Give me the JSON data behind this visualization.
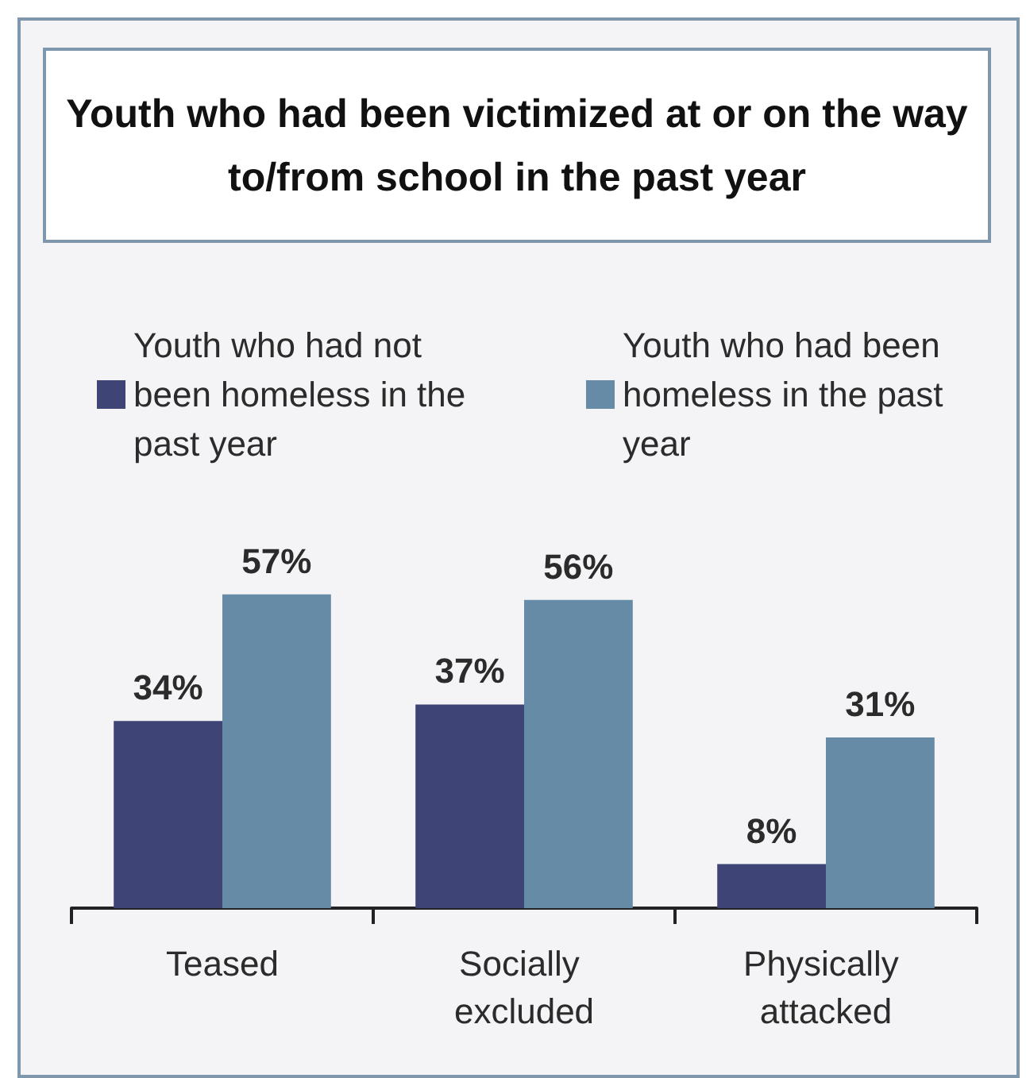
{
  "chart_data": {
    "type": "bar",
    "title": "Youth who had been victimized at or on the way to/from school in the past year",
    "categories": [
      "Teased",
      "Socially excluded",
      "Physically attacked"
    ],
    "series": [
      {
        "name": "Youth who had not been homeless in the past year",
        "color": "#3f4477",
        "values": [
          34,
          37,
          8
        ],
        "value_labels": [
          "34%",
          "37%",
          "8%"
        ]
      },
      {
        "name": "Youth who had been homeless in the past year",
        "color": "#658ba6",
        "values": [
          57,
          56,
          31
        ],
        "value_labels": [
          "57%",
          "56%",
          "31%"
        ]
      }
    ],
    "legend": "top",
    "grid": false
  }
}
